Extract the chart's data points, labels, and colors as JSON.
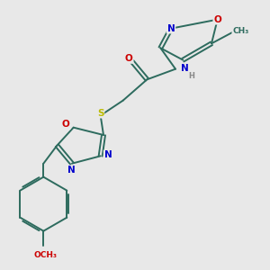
{
  "bg_color": "#e8e8e8",
  "bond_color": "#2d6b5e",
  "atom_colors": {
    "O": "#cc0000",
    "N": "#0000cc",
    "S": "#bbbb00",
    "C": "#2d6b5e",
    "H": "#888888"
  },
  "figsize": [
    3.0,
    3.0
  ],
  "dpi": 100,
  "lw": 1.4,
  "off": 0.006
}
